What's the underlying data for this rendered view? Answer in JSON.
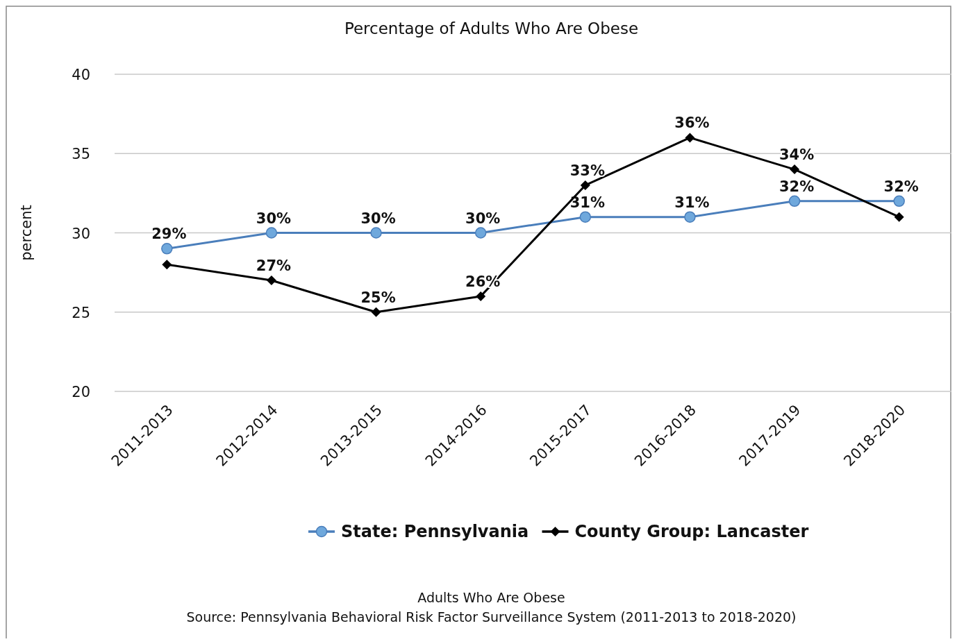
{
  "chart_data": {
    "type": "line",
    "title": "Percentage of Adults Who Are Obese",
    "ylabel": "percent",
    "categories": [
      "2011-2013",
      "2012-2014",
      "2013-2015",
      "2014-2016",
      "2015-2017",
      "2016-2018",
      "2017-2019",
      "2018-2020"
    ],
    "series": [
      {
        "name": "State: Pennsylvania",
        "color": "#4a7ebb",
        "marker": "circle",
        "values": [
          29,
          30,
          30,
          30,
          31,
          31,
          32,
          32
        ],
        "value_labels": [
          "29%",
          "30%",
          "30%",
          "30%",
          "31%",
          "31%",
          "32%",
          "32%"
        ]
      },
      {
        "name": "County Group: Lancaster",
        "color": "#000000",
        "marker": "diamond",
        "values": [
          28,
          27,
          25,
          26,
          33,
          36,
          34,
          31
        ],
        "value_labels": [
          null,
          "27%",
          "25%",
          "26%",
          "33%",
          "36%",
          "34%",
          null
        ]
      }
    ],
    "ylim": [
      20,
      40
    ],
    "yticks": [
      20,
      25,
      30,
      35,
      40
    ],
    "grid": "y",
    "legend": "bottom",
    "line_style": "solid",
    "annotations": [
      "Adults Who Are Obese",
      "Source: Pennsylvania Behavioral Risk Factor Surveillance System (2011-2013 to 2018-2020)"
    ]
  }
}
